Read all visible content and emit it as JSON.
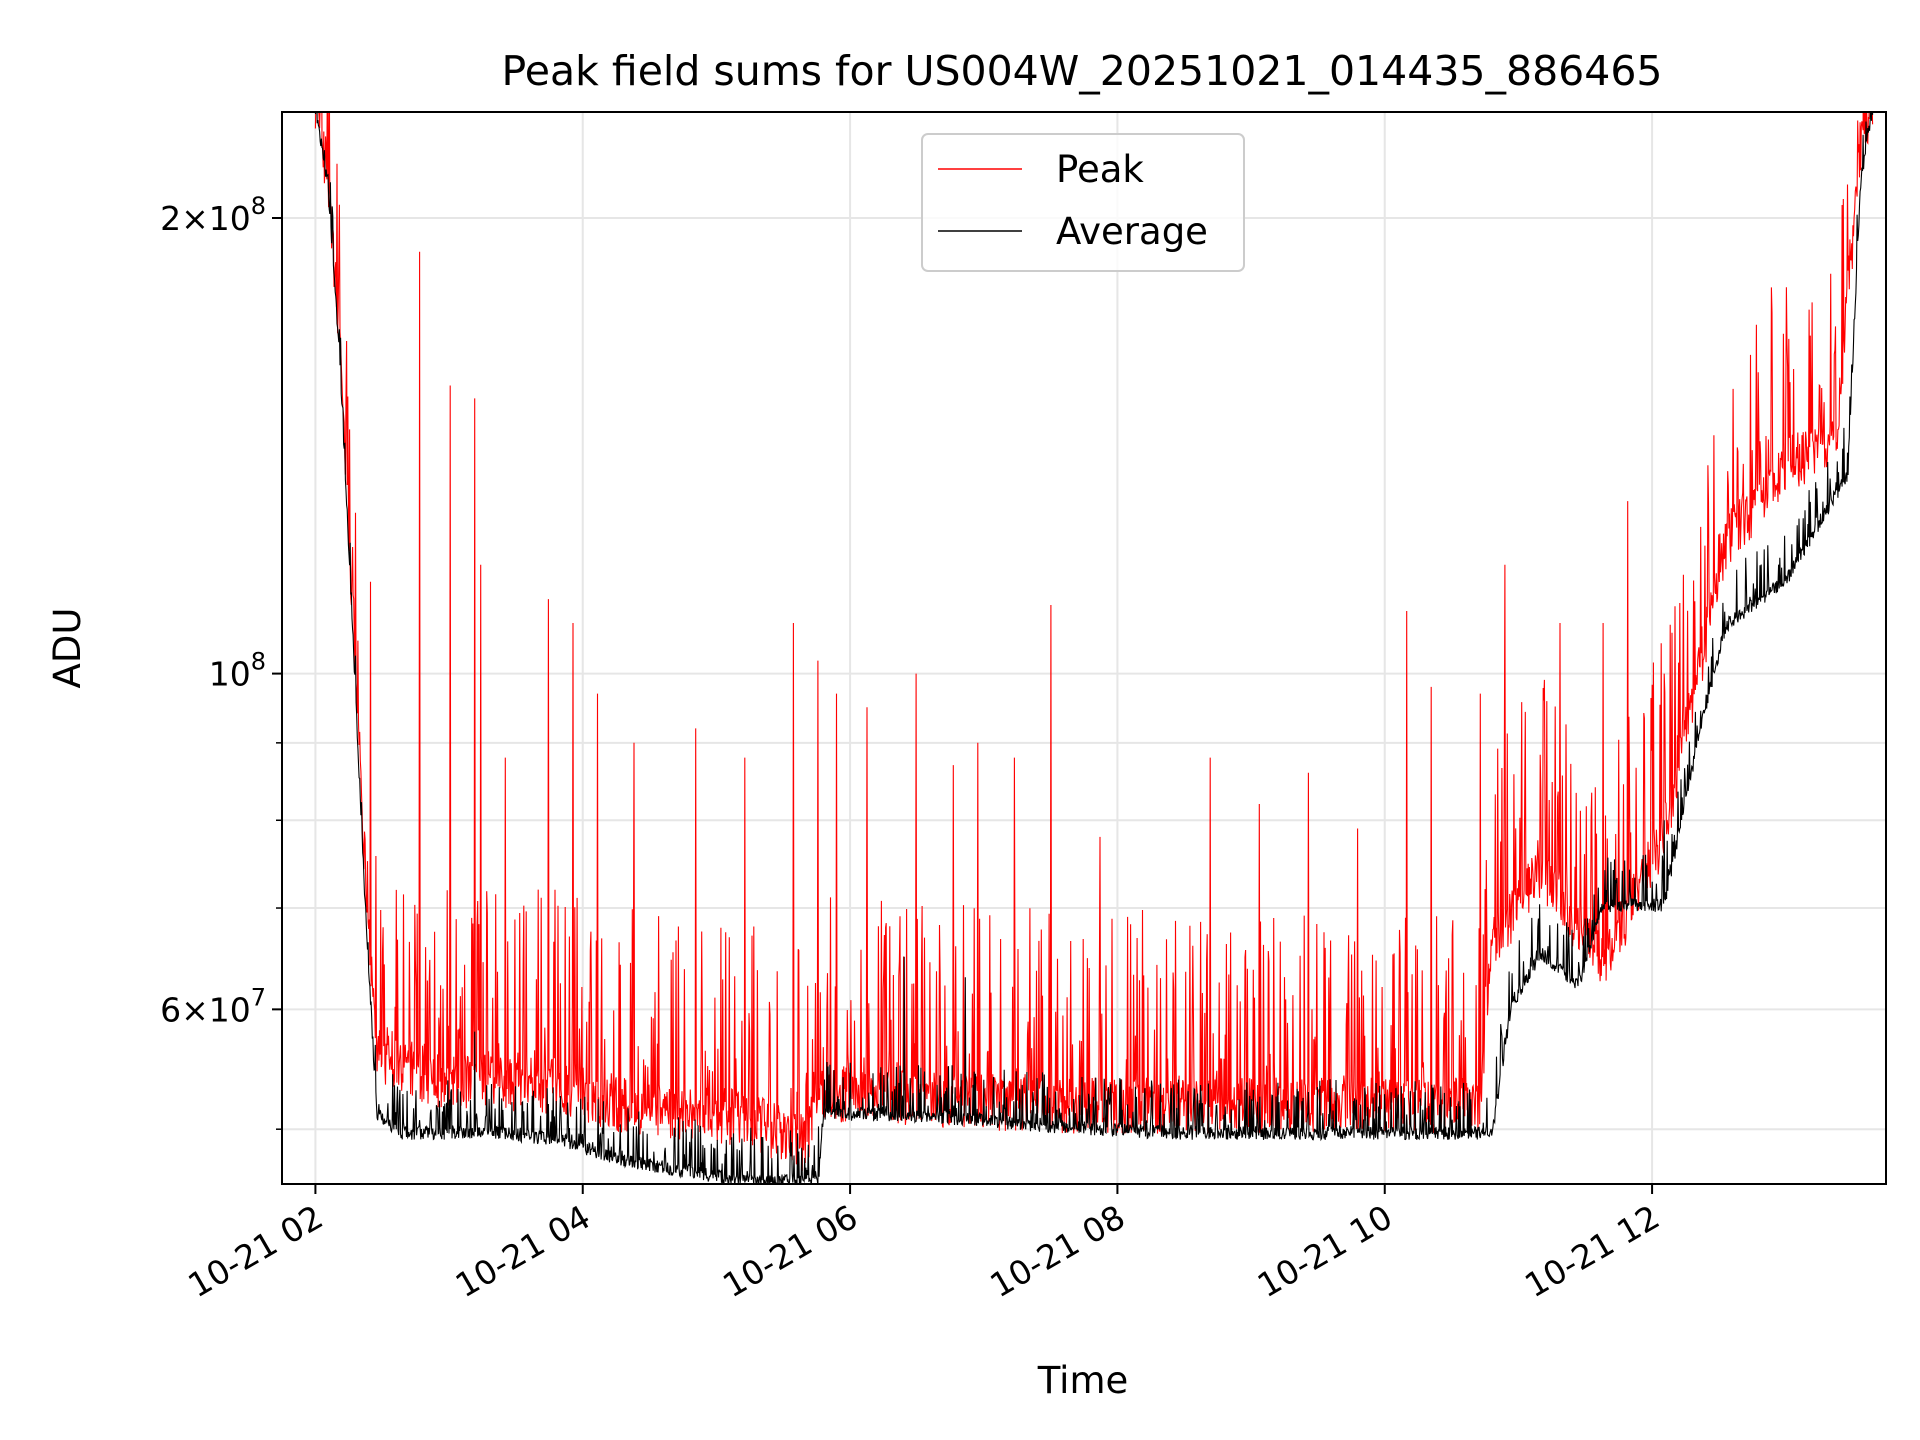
{
  "chart_data": {
    "type": "line",
    "title": "Peak field sums for US004W_20251021_014435_886465",
    "xlabel": "Time",
    "ylabel": "ADU",
    "yscale": "log",
    "ylim": [
      46000000,
      235000000
    ],
    "xlim_hours": [
      1.75,
      13.75
    ],
    "grid": true,
    "legend_position": "upper center",
    "x_ticks": [
      {
        "hour": 2,
        "label": "10-21 02"
      },
      {
        "hour": 4,
        "label": "10-21 04"
      },
      {
        "hour": 6,
        "label": "10-21 06"
      },
      {
        "hour": 8,
        "label": "10-21 08"
      },
      {
        "hour": 10,
        "label": "10-21 10"
      },
      {
        "hour": 12,
        "label": "10-21 12"
      }
    ],
    "y_major_ticks": [
      {
        "value": 60000000,
        "mantissa": "6",
        "base": "10",
        "exp": "7",
        "times": "×"
      },
      {
        "value": 100000000,
        "mantissa": "",
        "base": "10",
        "exp": "8",
        "times": ""
      },
      {
        "value": 200000000,
        "mantissa": "2",
        "base": "10",
        "exp": "8",
        "times": "×"
      }
    ],
    "y_minor_ticks": [
      50000000,
      70000000,
      80000000,
      90000000
    ],
    "series": [
      {
        "name": "Peak",
        "color": "#ff0000",
        "baseline": [
          [
            0.0,
            235000000
          ],
          [
            0.1,
            210000000
          ],
          [
            0.2,
            160000000
          ],
          [
            0.3,
            110000000
          ],
          [
            0.4,
            75000000
          ],
          [
            0.5,
            55000000
          ],
          [
            1.0,
            53000000
          ],
          [
            2.0,
            52500000
          ],
          [
            2.5,
            51000000
          ],
          [
            3.5,
            50000000
          ],
          [
            4.0,
            48000000
          ],
          [
            4.1,
            52000000
          ],
          [
            5.0,
            51500000
          ],
          [
            6.0,
            51000000
          ],
          [
            7.0,
            51000000
          ],
          [
            8.0,
            51000000
          ],
          [
            9.0,
            51000000
          ],
          [
            9.5,
            51000000
          ],
          [
            9.6,
            65000000
          ],
          [
            10.0,
            73000000
          ],
          [
            10.5,
            63000000
          ],
          [
            11.0,
            77000000
          ],
          [
            11.3,
            100000000
          ],
          [
            11.5,
            120000000
          ],
          [
            12.0,
            135000000
          ],
          [
            12.4,
            140000000
          ],
          [
            12.6,
            220000000
          ],
          [
            12.7,
            235000000
          ]
        ],
        "noise_amp": 0.25,
        "spikes": [
          [
            0.28,
            145000000
          ],
          [
            0.45,
            115000000
          ],
          [
            0.85,
            190000000
          ],
          [
            1.1,
            155000000
          ],
          [
            1.3,
            152000000
          ],
          [
            1.35,
            118000000
          ],
          [
            1.55,
            88000000
          ],
          [
            1.9,
            112000000
          ],
          [
            2.1,
            108000000
          ],
          [
            2.3,
            97000000
          ],
          [
            2.6,
            90000000
          ],
          [
            3.1,
            92000000
          ],
          [
            3.5,
            88000000
          ],
          [
            3.9,
            108000000
          ],
          [
            4.1,
            102000000
          ],
          [
            4.25,
            97000000
          ],
          [
            4.5,
            95000000
          ],
          [
            4.9,
            100000000
          ],
          [
            5.2,
            87000000
          ],
          [
            5.4,
            90000000
          ],
          [
            5.7,
            88000000
          ],
          [
            6.0,
            111000000
          ],
          [
            6.4,
            78000000
          ],
          [
            7.3,
            88000000
          ],
          [
            7.7,
            82000000
          ],
          [
            8.1,
            86000000
          ],
          [
            8.5,
            79000000
          ],
          [
            8.9,
            110000000
          ],
          [
            9.1,
            98000000
          ],
          [
            9.5,
            97000000
          ],
          [
            9.7,
            118000000
          ],
          [
            10.15,
            108000000
          ],
          [
            10.5,
            108000000
          ],
          [
            10.7,
            130000000
          ],
          [
            11.0,
            100000000
          ],
          [
            11.3,
            125000000
          ],
          [
            11.75,
            170000000
          ],
          [
            12.0,
            165000000
          ],
          [
            12.45,
            185000000
          ]
        ]
      },
      {
        "name": "Average",
        "color": "#000000",
        "baseline": [
          [
            0.0,
            235000000
          ],
          [
            0.1,
            210000000
          ],
          [
            0.2,
            160000000
          ],
          [
            0.3,
            108000000
          ],
          [
            0.4,
            72000000
          ],
          [
            0.5,
            51000000
          ],
          [
            0.7,
            49500000
          ],
          [
            1.5,
            49500000
          ],
          [
            2.0,
            49000000
          ],
          [
            2.5,
            47500000
          ],
          [
            3.5,
            46000000
          ],
          [
            4.1,
            46000000
          ],
          [
            4.15,
            51000000
          ],
          [
            5.0,
            50800000
          ],
          [
            6.0,
            50000000
          ],
          [
            7.0,
            49500000
          ],
          [
            8.0,
            49500000
          ],
          [
            9.0,
            49500000
          ],
          [
            9.6,
            49500000
          ],
          [
            9.75,
            60000000
          ],
          [
            10.0,
            65000000
          ],
          [
            10.3,
            62000000
          ],
          [
            10.5,
            70000000
          ],
          [
            11.0,
            70000000
          ],
          [
            11.3,
            92000000
          ],
          [
            11.5,
            107000000
          ],
          [
            12.0,
            115000000
          ],
          [
            12.5,
            135000000
          ],
          [
            12.6,
            210000000
          ],
          [
            12.7,
            235000000
          ]
        ],
        "noise_amp": 0.06,
        "spikes": [
          [
            1.3,
            58000000
          ],
          [
            4.8,
            65000000
          ],
          [
            5.3,
            63000000
          ],
          [
            11.0,
            80000000
          ]
        ]
      }
    ]
  }
}
